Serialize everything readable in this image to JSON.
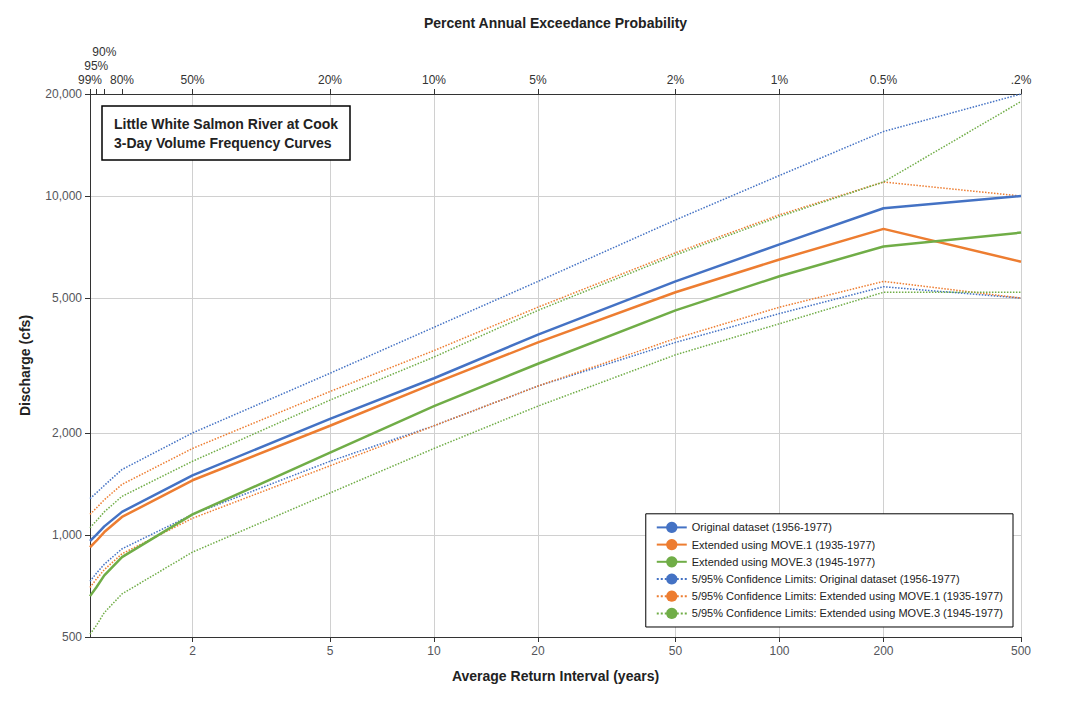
{
  "chart_data": {
    "type": "line",
    "title": "Little White Salmon River at Cook\n3-Day Volume Frequency Curves",
    "xlabel": "Average Return Interval (years)",
    "ylabel": "Discharge (cfs)",
    "x2label": "Percent Annual Exceedance Probability",
    "log": true,
    "grid": true,
    "legend": "lower right",
    "xlim": [
      1.01,
      500
    ],
    "xticks": [
      2,
      5,
      10,
      20,
      50,
      100,
      200,
      500
    ],
    "x2lim": [
      1.01,
      500
    ],
    "x2ticks": [
      {
        "value": 1.01,
        "label": "99%"
      },
      {
        "value": 1.053,
        "label": "95%"
      },
      {
        "value": 1.111,
        "label": "90%"
      },
      {
        "value": 1.25,
        "label": "80%"
      },
      {
        "value": 2.0,
        "label": "50%"
      },
      {
        "value": 5.0,
        "label": "20%"
      },
      {
        "value": 10.0,
        "label": "10%"
      },
      {
        "value": 20.0,
        "label": "5%"
      },
      {
        "value": 50.0,
        "label": "2%"
      },
      {
        "value": 100.0,
        "label": "1%"
      },
      {
        "value": 200.0,
        "label": "0.5%"
      },
      {
        "value": 500.0,
        "label": ".2%"
      }
    ],
    "ylim": [
      500,
      20000
    ],
    "yticks": [
      500,
      {
        "value": 1000,
        "label": "1,000"
      },
      {
        "value": 2000,
        "label": "2,000"
      },
      {
        "value": 5000,
        "label": "5,000"
      },
      {
        "value": 10000,
        "label": "10,000"
      },
      {
        "value": 20000,
        "label": "20,000"
      }
    ],
    "x": [
      1.01,
      1.053,
      1.111,
      1.25,
      2.0,
      5.0,
      10.0,
      20.0,
      50.0,
      100.0,
      200.0,
      500.0
    ],
    "series": [
      {
        "name": "Original dataset (1956-1977)",
        "color": "#4472C4",
        "line_style": "solid",
        "values": [
          960,
          1000,
          1060,
          1170,
          1500,
          2200,
          2900,
          3900,
          5600,
          7200,
          9200,
          10000
        ]
      },
      {
        "name": "Extended using MOVE.1 (1935-1977)",
        "color": "#ED7D31",
        "line_style": "solid",
        "values": [
          920,
          960,
          1020,
          1130,
          1450,
          2100,
          2800,
          3700,
          5200,
          6500,
          8000,
          6400
        ]
      },
      {
        "name": "Extended using MOVE.3 (1945-1977)",
        "color": "#70AD47",
        "line_style": "solid",
        "values": [
          660,
          700,
          760,
          860,
          1150,
          1750,
          2400,
          3200,
          4600,
          5800,
          7100,
          7800
        ]
      },
      {
        "name": "5/95% Confidence Limits: Original dataset (1956-1977)",
        "color": "#4472C4",
        "line_style": "dotted",
        "values": [
          1280,
          1330,
          1400,
          1560,
          2000,
          3000,
          4100,
          5600,
          8500,
          11500,
          15500,
          20000
        ]
      },
      {
        "color": "#4472C4",
        "line_style": "dotted",
        "values": [
          730,
          770,
          820,
          910,
          1150,
          1650,
          2100,
          2750,
          3700,
          4500,
          5400,
          5000
        ]
      },
      {
        "name": "5/95% Confidence Limits: Extended using MOVE.1 (1935-1977)",
        "color": "#ED7D31",
        "line_style": "dotted",
        "values": [
          1150,
          1200,
          1270,
          1410,
          1800,
          2650,
          3500,
          4700,
          6800,
          8800,
          11000,
          10000
        ]
      },
      {
        "color": "#ED7D31",
        "line_style": "dotted",
        "values": [
          700,
          740,
          790,
          880,
          1120,
          1600,
          2100,
          2750,
          3800,
          4700,
          5600,
          5000
        ]
      },
      {
        "name": "5/95% Confidence Limits: Extended using MOVE.3 (1945-1977)",
        "color": "#70AD47",
        "line_style": "dotted",
        "values": [
          1050,
          1100,
          1170,
          1300,
          1650,
          2500,
          3350,
          4600,
          6700,
          8700,
          11000,
          19000
        ]
      },
      {
        "color": "#70AD47",
        "line_style": "dotted",
        "values": [
          510,
          540,
          590,
          670,
          890,
          1330,
          1800,
          2400,
          3400,
          4200,
          5200,
          5200
        ]
      }
    ]
  }
}
